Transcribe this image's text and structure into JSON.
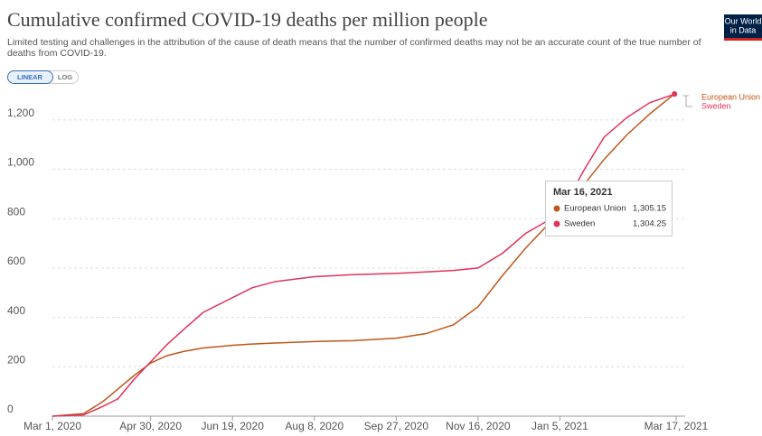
{
  "chart_data": {
    "type": "line",
    "title": "Cumulative confirmed COVID-19 deaths per million people",
    "subtitle": [
      "Limited testing and challenges in the attribution of the cause of death means that the number of confirmed deaths may not be an accurate count of the true number of",
      "deaths from COVID-19."
    ],
    "scale_buttons": [
      "LINEAR",
      "LOG"
    ],
    "logo": [
      "Our World",
      "in Data"
    ],
    "x": [
      "2020-03-01",
      "2020-03-20",
      "2020-04-01",
      "2020-04-10",
      "2020-04-20",
      "2020-04-30",
      "2020-05-10",
      "2020-05-20",
      "2020-06-01",
      "2020-06-19",
      "2020-07-01",
      "2020-07-15",
      "2020-08-08",
      "2020-09-01",
      "2020-09-27",
      "2020-10-15",
      "2020-11-01",
      "2020-11-16",
      "2020-12-01",
      "2020-12-15",
      "2021-01-05",
      "2021-01-20",
      "2021-02-01",
      "2021-02-15",
      "2021-03-01",
      "2021-03-16"
    ],
    "series": [
      {
        "name": "European Union",
        "color": "#c0561a",
        "values": [
          0,
          10,
          60,
          110,
          165,
          215,
          245,
          262,
          276,
          287,
          292,
          296,
          302,
          306,
          316,
          334,
          370,
          443,
          570,
          680,
          827,
          940,
          1040,
          1140,
          1225,
          1305.15
        ]
      },
      {
        "name": "Sweden",
        "color": "#e0335a",
        "values": [
          0,
          5,
          40,
          70,
          150,
          220,
          290,
          350,
          420,
          480,
          520,
          545,
          565,
          573,
          578,
          584,
          590,
          600,
          660,
          740,
          820,
          1000,
          1130,
          1210,
          1270,
          1304.25
        ]
      }
    ],
    "xlim": [
      "2020-03-01",
      "2021-03-17"
    ],
    "xticks": [
      {
        "value": "2020-03-01",
        "label": "Mar 1, 2020"
      },
      {
        "value": "2020-04-30",
        "label": "Apr 30, 2020"
      },
      {
        "value": "2020-06-19",
        "label": "Jun 19, 2020"
      },
      {
        "value": "2020-08-08",
        "label": "Aug 8, 2020"
      },
      {
        "value": "2020-09-27",
        "label": "Sep 27, 2020"
      },
      {
        "value": "2020-11-16",
        "label": "Nov 16, 2020"
      },
      {
        "value": "2021-01-05",
        "label": "Jan 5, 2021"
      },
      {
        "value": "2021-03-17",
        "label": "Mar 17, 2021"
      }
    ],
    "ylim": [
      0,
      1320
    ],
    "yticks": [
      0,
      200,
      400,
      600,
      800,
      {
        "value": 1000,
        "label": "1,000"
      },
      {
        "value": 1200,
        "label": "1,200"
      }
    ],
    "grid": true,
    "tooltip": {
      "date": "Mar 16, 2021",
      "value_labels": [
        "1,305.15",
        "1,304.25"
      ]
    }
  }
}
